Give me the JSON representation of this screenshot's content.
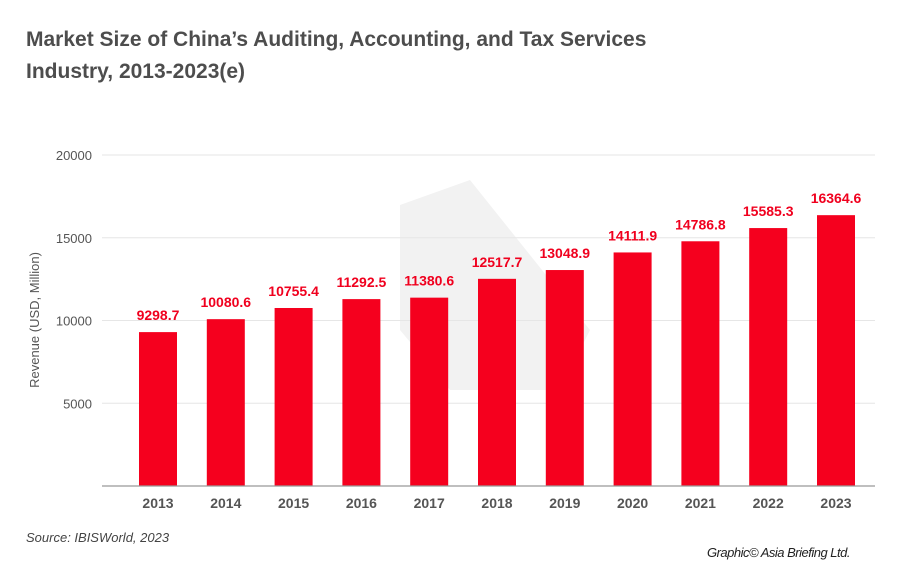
{
  "chart_data": {
    "type": "bar",
    "title": "Market Size of China’s Auditing, Accounting, and Tax Services Industry, 2013-2023(e)",
    "xlabel": "",
    "ylabel": "Revenue (USD, Million)",
    "ylim": [
      0,
      20000
    ],
    "yticks": [
      5000,
      10000,
      15000,
      20000
    ],
    "grid": true,
    "categories": [
      "2013",
      "2014",
      "2015",
      "2016",
      "2017",
      "2018",
      "2019",
      "2020",
      "2021",
      "2022",
      "2023"
    ],
    "values": [
      9298.7,
      10080.6,
      10755.4,
      11292.5,
      11380.6,
      12517.7,
      13048.9,
      14111.9,
      14786.8,
      15585.3,
      16364.6
    ],
    "bar_color": "#f5001e"
  },
  "source": "Source: IBISWorld, 2023",
  "credit": "Graphic© Asia Briefing Ltd."
}
